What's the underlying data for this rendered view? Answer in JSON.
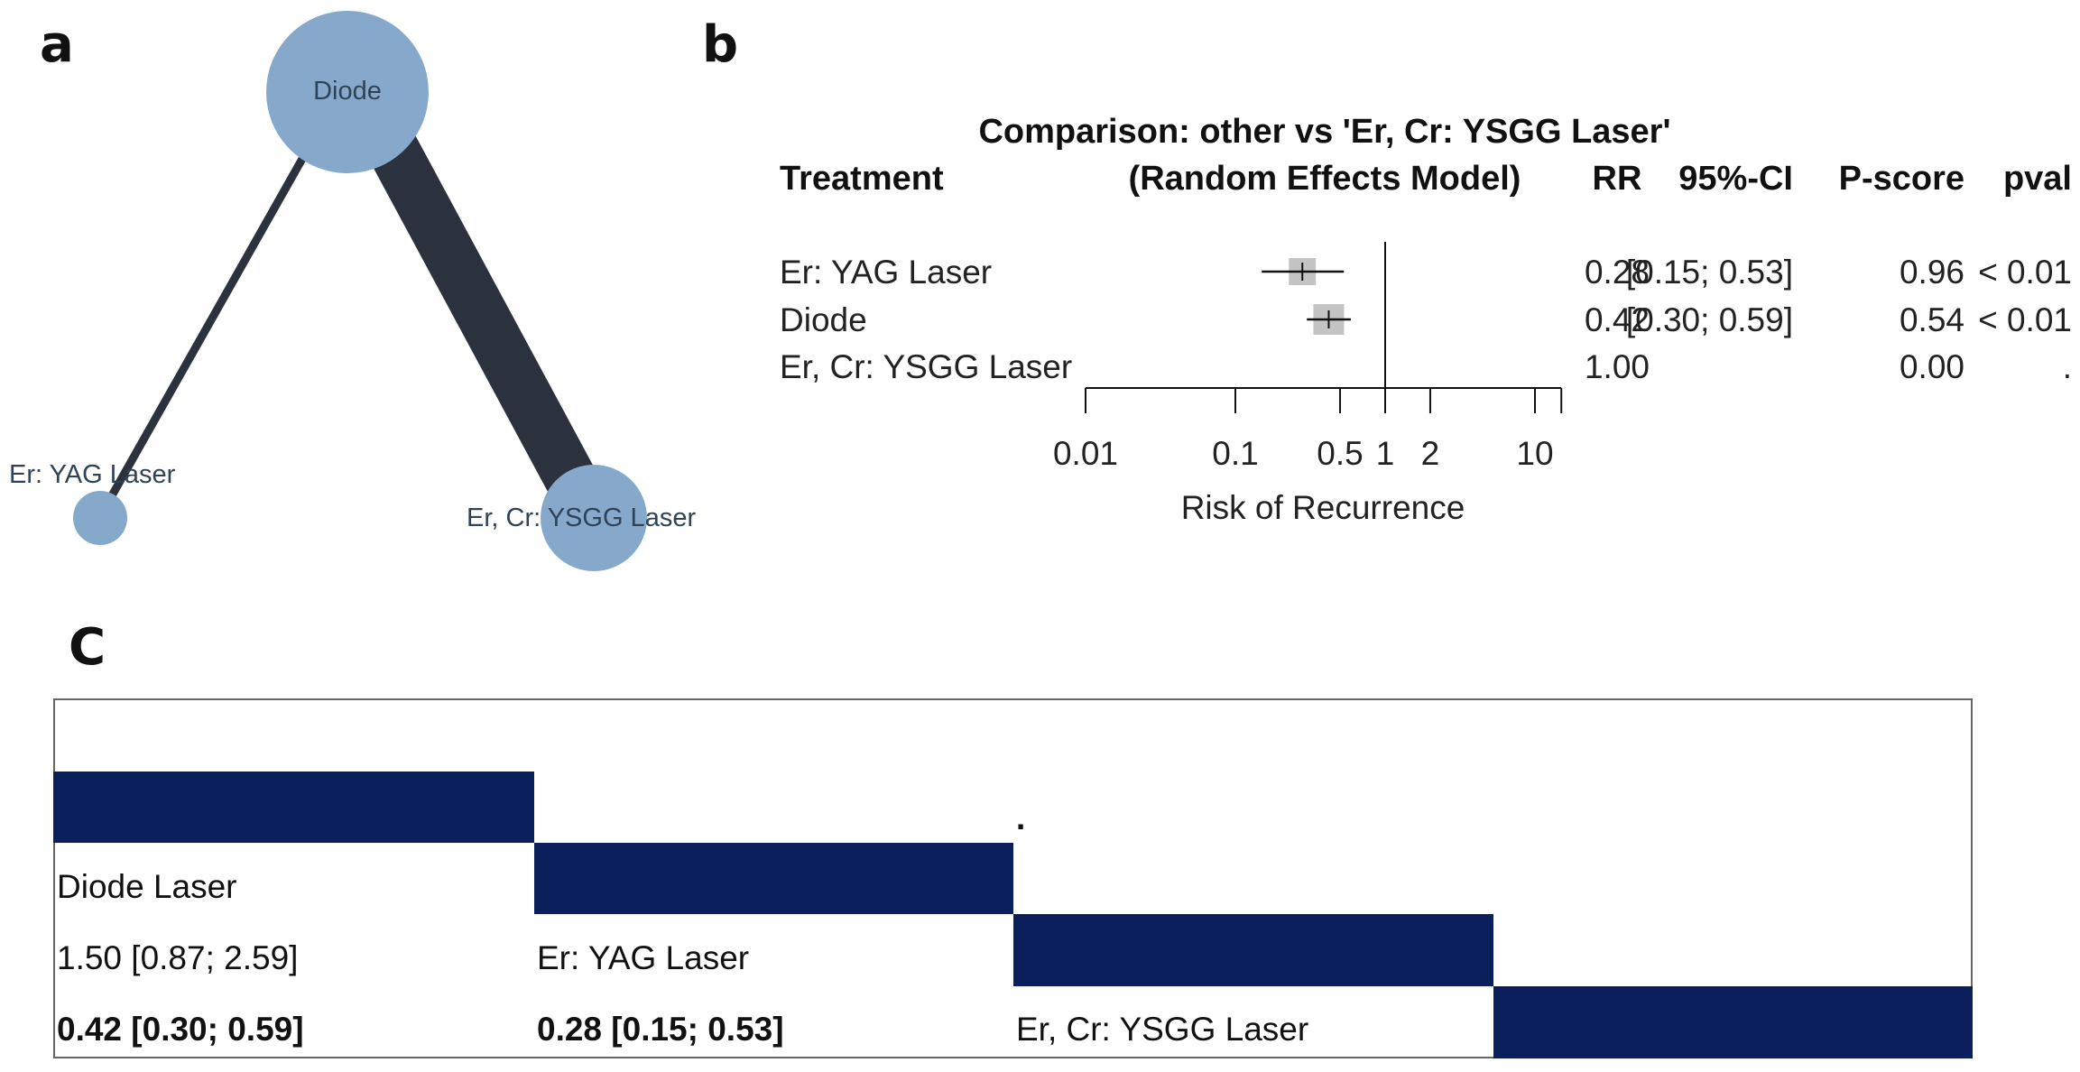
{
  "panel_labels": {
    "a": "a",
    "b": "b",
    "c": "C"
  },
  "colors": {
    "node": "#86a9cb",
    "edge": "#2c323d",
    "navy": "#0b1f5c",
    "square": "#c4c4c4"
  },
  "chart_data": [
    {
      "type": "network",
      "panel": "a",
      "nodes": [
        {
          "id": "diode",
          "label": "Diode"
        },
        {
          "id": "eryag",
          "label": "Er: YAG Laser"
        },
        {
          "id": "ercr",
          "label": "Er, Cr: YSGG Laser"
        }
      ],
      "edges": [
        {
          "from": "diode",
          "to": "eryag",
          "weight": 1
        },
        {
          "from": "diode",
          "to": "ercr",
          "weight": 5
        }
      ]
    },
    {
      "type": "forest",
      "panel": "b",
      "title": "Comparison: other vs 'Er, Cr: YSGG Laser'",
      "subtitle": "(Random Effects Model)",
      "headers": {
        "treatment": "Treatment",
        "rr": "RR",
        "ci": "95%-CI",
        "pscore": "P-score",
        "pval": "pval"
      },
      "xlabel": "Risk of Recurrence",
      "xscale": "log",
      "xlim": [
        0.01,
        15
      ],
      "ticks": [
        0.01,
        0.1,
        0.5,
        1,
        2,
        10
      ],
      "tick_labels": [
        "0.01",
        "0.1",
        "0.5",
        "1",
        "2",
        "10"
      ],
      "reference": 1,
      "rows": [
        {
          "treatment": "Er: YAG Laser",
          "rr": 0.28,
          "lo": 0.15,
          "hi": 0.53,
          "rr_text": "0.28",
          "ci_text": "[0.15; 0.53]",
          "pscore_text": "0.96",
          "pval_text": "< 0.01"
        },
        {
          "treatment": "Diode",
          "rr": 0.42,
          "lo": 0.3,
          "hi": 0.59,
          "rr_text": "0.42",
          "ci_text": "[0.30; 0.59]",
          "pscore_text": "0.54",
          "pval_text": "< 0.01"
        },
        {
          "treatment": "Er, Cr: YSGG Laser",
          "rr": 1.0,
          "lo": null,
          "hi": null,
          "rr_text": "1.00",
          "ci_text": "",
          "pscore_text": "0.00",
          "pval_text": "."
        }
      ]
    },
    {
      "type": "table",
      "panel": "c",
      "dot": ".",
      "league": {
        "diag": [
          "Diode Laser",
          "Er: YAG Laser",
          "Er, Cr: YSGG Laser"
        ],
        "r2c1": "1.50 [0.87; 2.59]",
        "r3c1": "0.42 [0.30; 0.59]",
        "r3c2": "0.28 [0.15; 0.53]"
      }
    }
  ]
}
